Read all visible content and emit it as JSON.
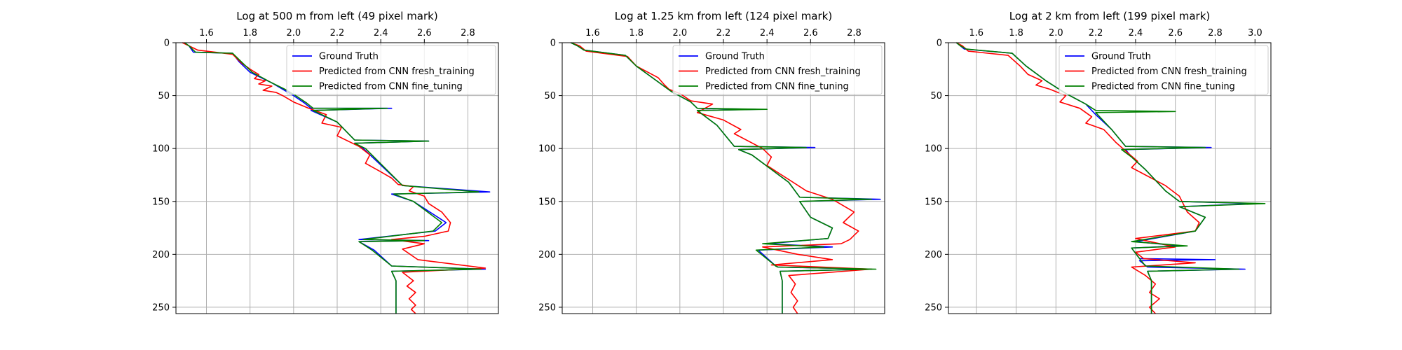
{
  "colors": {
    "ground_truth": "#0000ff",
    "fresh_training": "#ff0000",
    "fine_tuning": "#007f00",
    "grid": "#b0b0b0"
  },
  "chart_data": [
    {
      "type": "line",
      "title": "Log at 500 m from left (49 pixel mark)",
      "xlim": [
        1.46,
        2.94
      ],
      "ylim": [
        0,
        256
      ],
      "y_inverted": true,
      "x_axis_position": "top",
      "xticks": [
        1.6,
        1.8,
        2.0,
        2.2,
        2.4,
        2.6,
        2.8
      ],
      "yticks": [
        0,
        50,
        100,
        150,
        200,
        250
      ],
      "grid": true,
      "legend": "upper-right",
      "series": [
        {
          "name": "Ground Truth",
          "color": "#0000ff",
          "x": [
            1.5,
            1.52,
            1.54,
            1.72,
            1.75,
            1.8,
            1.9,
            1.95,
            2.0,
            2.05,
            2.08,
            2.45,
            2.08,
            2.2,
            2.28,
            2.62,
            2.28,
            2.32,
            2.5,
            2.9,
            2.45,
            2.55,
            2.7,
            2.65,
            2.3,
            2.62,
            2.3,
            2.37,
            2.45,
            2.88,
            2.45,
            2.47,
            2.47
          ],
          "y": [
            0,
            3,
            9,
            10,
            18,
            28,
            38,
            44,
            50,
            57,
            62,
            62,
            64,
            75,
            92,
            93,
            95,
            100,
            135,
            141,
            143,
            150,
            170,
            178,
            186,
            187,
            188,
            196,
            211,
            214,
            216,
            225,
            256
          ]
        },
        {
          "name": "Predicted from CNN fresh_training",
          "color": "#ff0000",
          "x": [
            1.49,
            1.52,
            1.56,
            1.72,
            1.76,
            1.8,
            1.84,
            1.82,
            1.87,
            1.84,
            1.9,
            1.86,
            1.92,
            1.95,
            2.0,
            2.07,
            2.15,
            2.13,
            2.22,
            2.2,
            2.3,
            2.35,
            2.33,
            2.4,
            2.45,
            2.48,
            2.55,
            2.53,
            2.6,
            2.62,
            2.68,
            2.72,
            2.71,
            2.6,
            2.45,
            2.6,
            2.5,
            2.57,
            2.88,
            2.5,
            2.55,
            2.52,
            2.56,
            2.53,
            2.56,
            2.54,
            2.56
          ],
          "y": [
            0,
            3,
            7,
            11,
            19,
            25,
            30,
            34,
            36,
            39,
            41,
            45,
            47,
            50,
            56,
            62,
            68,
            76,
            80,
            88,
            98,
            106,
            114,
            122,
            128,
            134,
            136,
            140,
            145,
            152,
            160,
            170,
            178,
            183,
            186,
            190,
            195,
            205,
            213,
            217,
            225,
            230,
            236,
            242,
            248,
            252,
            256
          ]
        },
        {
          "name": "Predicted from CNN fine_tuning",
          "color": "#007f00",
          "x": [
            1.5,
            1.52,
            1.55,
            1.72,
            1.76,
            1.81,
            1.9,
            1.96,
            2.01,
            2.06,
            2.09,
            2.43,
            2.09,
            2.2,
            2.28,
            2.62,
            2.28,
            2.33,
            2.5,
            2.85,
            2.46,
            2.55,
            2.68,
            2.64,
            2.32,
            2.6,
            2.3,
            2.36,
            2.45,
            2.86,
            2.45,
            2.47,
            2.47
          ],
          "y": [
            0,
            3,
            9,
            10,
            18,
            28,
            38,
            44,
            50,
            57,
            62,
            62,
            64,
            75,
            92,
            93,
            95,
            100,
            135,
            141,
            143,
            150,
            170,
            178,
            186,
            187,
            188,
            196,
            211,
            214,
            216,
            225,
            256
          ]
        }
      ]
    },
    {
      "type": "line",
      "title": "Log at 1.25 km from left (124 pixel mark)",
      "xlim": [
        1.46,
        2.94
      ],
      "ylim": [
        0,
        256
      ],
      "y_inverted": true,
      "x_axis_position": "top",
      "xticks": [
        1.6,
        1.8,
        2.0,
        2.2,
        2.4,
        2.6,
        2.8
      ],
      "yticks": [
        0,
        50,
        100,
        150,
        200,
        250
      ],
      "grid": true,
      "legend": "upper-right",
      "series": [
        {
          "name": "Ground Truth",
          "color": "#0000ff",
          "x": [
            1.5,
            1.53,
            1.56,
            1.75,
            1.8,
            1.88,
            1.96,
            2.05,
            2.08,
            2.35,
            2.08,
            2.17,
            2.25,
            2.62,
            2.27,
            2.33,
            2.5,
            2.55,
            2.92,
            2.55,
            2.6,
            2.7,
            2.68,
            2.4,
            2.7,
            2.36,
            2.44,
            2.45,
            2.88,
            2.46,
            2.47,
            2.47
          ],
          "y": [
            0,
            3,
            7,
            12,
            22,
            34,
            46,
            56,
            62,
            63,
            64,
            78,
            98,
            99,
            101,
            106,
            132,
            146,
            148,
            150,
            165,
            175,
            185,
            190,
            193,
            196,
            211,
            212,
            214,
            216,
            225,
            256
          ]
        },
        {
          "name": "Predicted from CNN fresh_training",
          "color": "#ff0000",
          "x": [
            1.5,
            1.54,
            1.57,
            1.76,
            1.8,
            1.9,
            1.93,
            1.95,
            2.0,
            2.05,
            2.15,
            2.08,
            2.2,
            2.28,
            2.25,
            2.38,
            2.42,
            2.4,
            2.46,
            2.52,
            2.58,
            2.7,
            2.8,
            2.75,
            2.82,
            2.78,
            2.74,
            2.38,
            2.54,
            2.7,
            2.42,
            2.88,
            2.5,
            2.53,
            2.51,
            2.54,
            2.52,
            2.54
          ],
          "y": [
            0,
            3,
            8,
            13,
            22,
            33,
            40,
            44,
            48,
            55,
            58,
            66,
            73,
            82,
            86,
            100,
            108,
            116,
            124,
            132,
            140,
            148,
            160,
            170,
            178,
            186,
            190,
            193,
            200,
            205,
            210,
            214,
            220,
            228,
            236,
            244,
            250,
            256
          ]
        },
        {
          "name": "Predicted from CNN fine_tuning",
          "color": "#007f00",
          "x": [
            1.5,
            1.53,
            1.56,
            1.75,
            1.8,
            1.88,
            1.96,
            2.05,
            2.08,
            2.4,
            2.08,
            2.17,
            2.25,
            2.58,
            2.27,
            2.33,
            2.5,
            2.55,
            2.88,
            2.55,
            2.6,
            2.7,
            2.68,
            2.38,
            2.66,
            2.35,
            2.44,
            2.45,
            2.9,
            2.46,
            2.47,
            2.47
          ],
          "y": [
            0,
            3,
            7,
            12,
            22,
            34,
            46,
            56,
            62,
            63,
            64,
            78,
            98,
            99,
            101,
            106,
            132,
            146,
            148,
            150,
            165,
            175,
            185,
            190,
            193,
            196,
            211,
            212,
            214,
            216,
            225,
            256
          ]
        }
      ]
    },
    {
      "type": "line",
      "title": "Log at 2 km from left (199 pixel mark)",
      "xlim": [
        1.46,
        3.08
      ],
      "ylim": [
        0,
        256
      ],
      "y_inverted": true,
      "x_axis_position": "top",
      "xticks": [
        1.6,
        1.8,
        2.0,
        2.2,
        2.4,
        2.6,
        2.8,
        3.0
      ],
      "yticks": [
        0,
        50,
        100,
        150,
        200,
        250
      ],
      "grid": true,
      "legend": "upper-right",
      "series": [
        {
          "name": "Ground Truth",
          "color": "#0000ff",
          "x": [
            1.5,
            1.52,
            1.54,
            1.78,
            1.85,
            1.95,
            2.05,
            2.15,
            2.2,
            2.28,
            2.35,
            2.78,
            2.35,
            2.38,
            2.45,
            2.55,
            2.62,
            3.0,
            2.62,
            2.75,
            2.7,
            2.4,
            2.62,
            2.38,
            2.42,
            2.8,
            2.42,
            2.46,
            2.95,
            2.46,
            2.48,
            2.48
          ],
          "y": [
            0,
            3,
            6,
            10,
            22,
            36,
            48,
            58,
            68,
            82,
            98,
            99,
            101,
            108,
            120,
            140,
            150,
            152,
            155,
            165,
            178,
            188,
            192,
            194,
            204,
            205,
            206,
            212,
            214,
            216,
            225,
            256
          ]
        },
        {
          "name": "Predicted from CNN fresh_training",
          "color": "#ff0000",
          "x": [
            1.5,
            1.53,
            1.56,
            1.76,
            1.82,
            1.86,
            1.93,
            1.9,
            1.97,
            2.05,
            2.02,
            2.12,
            2.18,
            2.15,
            2.24,
            2.3,
            2.36,
            2.41,
            2.38,
            2.45,
            2.55,
            2.62,
            2.66,
            2.72,
            2.7,
            2.4,
            2.6,
            2.4,
            2.44,
            2.7,
            2.38,
            2.45,
            2.5,
            2.47,
            2.52,
            2.47,
            2.5
          ],
          "y": [
            0,
            3,
            8,
            12,
            22,
            30,
            36,
            40,
            44,
            50,
            56,
            62,
            70,
            76,
            82,
            94,
            104,
            112,
            118,
            125,
            135,
            145,
            160,
            170,
            178,
            185,
            193,
            198,
            204,
            208,
            212,
            220,
            228,
            236,
            242,
            250,
            256
          ]
        },
        {
          "name": "Predicted from CNN fine_tuning",
          "color": "#007f00",
          "x": [
            1.5,
            1.52,
            1.55,
            1.78,
            1.85,
            1.95,
            2.05,
            2.15,
            2.2,
            2.6,
            2.2,
            2.28,
            2.35,
            2.75,
            2.33,
            2.38,
            2.45,
            2.55,
            2.62,
            3.05,
            2.62,
            2.75,
            2.7,
            2.38,
            2.66,
            2.38,
            2.42,
            2.45,
            2.92,
            2.46,
            2.48,
            2.48
          ],
          "y": [
            0,
            3,
            6,
            10,
            22,
            36,
            48,
            58,
            64,
            65,
            66,
            82,
            98,
            99,
            101,
            108,
            120,
            140,
            150,
            152,
            155,
            165,
            178,
            188,
            192,
            194,
            204,
            211,
            214,
            216,
            225,
            256
          ]
        }
      ]
    }
  ]
}
